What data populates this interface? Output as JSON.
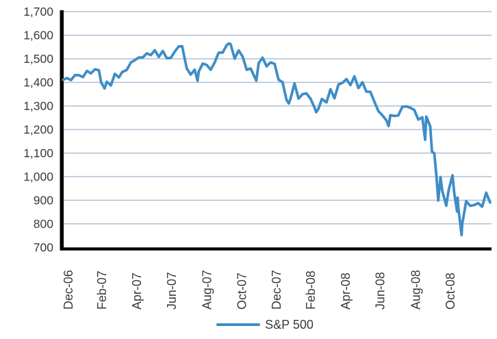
{
  "chart_data": {
    "type": "line",
    "title": "",
    "legend": {
      "position": "bottom",
      "entries": [
        "S&P 500"
      ]
    },
    "y_axis": {
      "min": 700,
      "max": 1700,
      "step": 100,
      "tick_labels": [
        "700",
        "800",
        "900",
        "1,000",
        "1,100",
        "1,200",
        "1,300",
        "1,400",
        "1,500",
        "1,600",
        "1,700"
      ],
      "grid": true
    },
    "x_axis": {
      "start_date": "2006-12-22",
      "end_date": "2009-01-09",
      "tick_labels": [
        "Dec-06",
        "Feb-07",
        "Apr-07",
        "Jun-07",
        "Aug-07",
        "Oct-07",
        "Dec-07",
        "Feb-08",
        "Apr-08",
        "Jun-08",
        "Aug-08",
        "Oct-08"
      ],
      "tick_dates": [
        "2006-12-31",
        "2007-02-28",
        "2007-04-30",
        "2007-06-30",
        "2007-08-31",
        "2007-10-31",
        "2007-12-31",
        "2008-02-29",
        "2008-04-30",
        "2008-06-30",
        "2008-08-31",
        "2008-10-31"
      ],
      "label_rotation_degrees": -90
    },
    "series": [
      {
        "name": "S&P 500",
        "color": "#3E8DC6",
        "points": [
          [
            "2006-12-22",
            1410.8
          ],
          [
            "2006-12-29",
            1418.3
          ],
          [
            "2007-01-05",
            1409.7
          ],
          [
            "2007-01-12",
            1430.7
          ],
          [
            "2007-01-19",
            1430.5
          ],
          [
            "2007-01-26",
            1422.2
          ],
          [
            "2007-02-02",
            1448.4
          ],
          [
            "2007-02-09",
            1438.1
          ],
          [
            "2007-02-16",
            1455.5
          ],
          [
            "2007-02-23",
            1451.2
          ],
          [
            "2007-02-27",
            1399.0
          ],
          [
            "2007-03-02",
            1387.2
          ],
          [
            "2007-03-05",
            1374.1
          ],
          [
            "2007-03-09",
            1402.8
          ],
          [
            "2007-03-16",
            1387.0
          ],
          [
            "2007-03-23",
            1436.1
          ],
          [
            "2007-03-30",
            1420.9
          ],
          [
            "2007-04-05",
            1443.8
          ],
          [
            "2007-04-13",
            1452.9
          ],
          [
            "2007-04-20",
            1484.4
          ],
          [
            "2007-04-27",
            1494.1
          ],
          [
            "2007-05-04",
            1505.6
          ],
          [
            "2007-05-11",
            1505.9
          ],
          [
            "2007-05-18",
            1522.8
          ],
          [
            "2007-05-25",
            1515.7
          ],
          [
            "2007-06-01",
            1536.3
          ],
          [
            "2007-06-08",
            1507.7
          ],
          [
            "2007-06-15",
            1532.9
          ],
          [
            "2007-06-22",
            1502.6
          ],
          [
            "2007-06-29",
            1503.4
          ],
          [
            "2007-07-06",
            1530.4
          ],
          [
            "2007-07-13",
            1552.5
          ],
          [
            "2007-07-19",
            1553.1
          ],
          [
            "2007-07-27",
            1459.0
          ],
          [
            "2007-08-03",
            1433.1
          ],
          [
            "2007-08-10",
            1453.6
          ],
          [
            "2007-08-15",
            1406.7
          ],
          [
            "2007-08-17",
            1445.9
          ],
          [
            "2007-08-24",
            1479.4
          ],
          [
            "2007-08-31",
            1474.0
          ],
          [
            "2007-09-07",
            1453.6
          ],
          [
            "2007-09-14",
            1484.3
          ],
          [
            "2007-09-21",
            1525.8
          ],
          [
            "2007-09-28",
            1526.8
          ],
          [
            "2007-10-05",
            1557.6
          ],
          [
            "2007-10-09",
            1565.2
          ],
          [
            "2007-10-12",
            1561.8
          ],
          [
            "2007-10-19",
            1500.6
          ],
          [
            "2007-10-26",
            1535.3
          ],
          [
            "2007-11-02",
            1509.7
          ],
          [
            "2007-11-09",
            1453.7
          ],
          [
            "2007-11-16",
            1458.7
          ],
          [
            "2007-11-26",
            1407.2
          ],
          [
            "2007-11-30",
            1481.1
          ],
          [
            "2007-12-07",
            1504.7
          ],
          [
            "2007-12-14",
            1468.0
          ],
          [
            "2007-12-21",
            1484.5
          ],
          [
            "2007-12-28",
            1478.5
          ],
          [
            "2008-01-04",
            1411.6
          ],
          [
            "2008-01-11",
            1401.0
          ],
          [
            "2008-01-18",
            1325.2
          ],
          [
            "2008-01-22",
            1310.5
          ],
          [
            "2008-01-25",
            1330.6
          ],
          [
            "2008-02-01",
            1395.4
          ],
          [
            "2008-02-08",
            1331.3
          ],
          [
            "2008-02-15",
            1350.0
          ],
          [
            "2008-02-22",
            1353.1
          ],
          [
            "2008-02-29",
            1330.6
          ],
          [
            "2008-03-07",
            1293.4
          ],
          [
            "2008-03-10",
            1273.4
          ],
          [
            "2008-03-14",
            1288.1
          ],
          [
            "2008-03-20",
            1329.5
          ],
          [
            "2008-03-28",
            1315.2
          ],
          [
            "2008-04-04",
            1370.4
          ],
          [
            "2008-04-11",
            1332.8
          ],
          [
            "2008-04-18",
            1390.3
          ],
          [
            "2008-04-25",
            1397.8
          ],
          [
            "2008-05-02",
            1413.9
          ],
          [
            "2008-05-09",
            1388.3
          ],
          [
            "2008-05-16",
            1425.4
          ],
          [
            "2008-05-23",
            1375.9
          ],
          [
            "2008-05-30",
            1400.4
          ],
          [
            "2008-06-06",
            1360.7
          ],
          [
            "2008-06-13",
            1360.0
          ],
          [
            "2008-06-20",
            1317.9
          ],
          [
            "2008-06-27",
            1278.4
          ],
          [
            "2008-07-03",
            1262.9
          ],
          [
            "2008-07-11",
            1239.5
          ],
          [
            "2008-07-15",
            1214.9
          ],
          [
            "2008-07-18",
            1260.7
          ],
          [
            "2008-07-25",
            1257.8
          ],
          [
            "2008-08-01",
            1260.3
          ],
          [
            "2008-08-08",
            1296.3
          ],
          [
            "2008-08-15",
            1298.2
          ],
          [
            "2008-08-22",
            1292.2
          ],
          [
            "2008-08-29",
            1282.8
          ],
          [
            "2008-09-05",
            1242.3
          ],
          [
            "2008-09-12",
            1251.7
          ],
          [
            "2008-09-17",
            1156.4
          ],
          [
            "2008-09-19",
            1255.1
          ],
          [
            "2008-09-26",
            1213.3
          ],
          [
            "2008-09-29",
            1106.4
          ],
          [
            "2008-10-03",
            1099.2
          ],
          [
            "2008-10-07",
            996.2
          ],
          [
            "2008-10-10",
            899.2
          ],
          [
            "2008-10-14",
            998.0
          ],
          [
            "2008-10-17",
            940.6
          ],
          [
            "2008-10-24",
            876.8
          ],
          [
            "2008-10-28",
            940.5
          ],
          [
            "2008-10-31",
            968.8
          ],
          [
            "2008-11-04",
            1005.8
          ],
          [
            "2008-11-07",
            931.0
          ],
          [
            "2008-11-12",
            852.3
          ],
          [
            "2008-11-13",
            911.3
          ],
          [
            "2008-11-14",
            873.3
          ],
          [
            "2008-11-20",
            752.4
          ],
          [
            "2008-11-21",
            800.0
          ],
          [
            "2008-11-28",
            896.2
          ],
          [
            "2008-12-05",
            876.1
          ],
          [
            "2008-12-12",
            879.7
          ],
          [
            "2008-12-19",
            887.9
          ],
          [
            "2008-12-26",
            872.8
          ],
          [
            "2009-01-02",
            931.8
          ],
          [
            "2009-01-09",
            890.4
          ]
        ]
      }
    ]
  },
  "legend": {
    "label": "S&P 500"
  },
  "colors": {
    "line": "#3E8DC6",
    "gridline": "#B0BDD2",
    "axis": "#000000",
    "text": "#3A3A3A",
    "background": "#FFFFFF"
  }
}
